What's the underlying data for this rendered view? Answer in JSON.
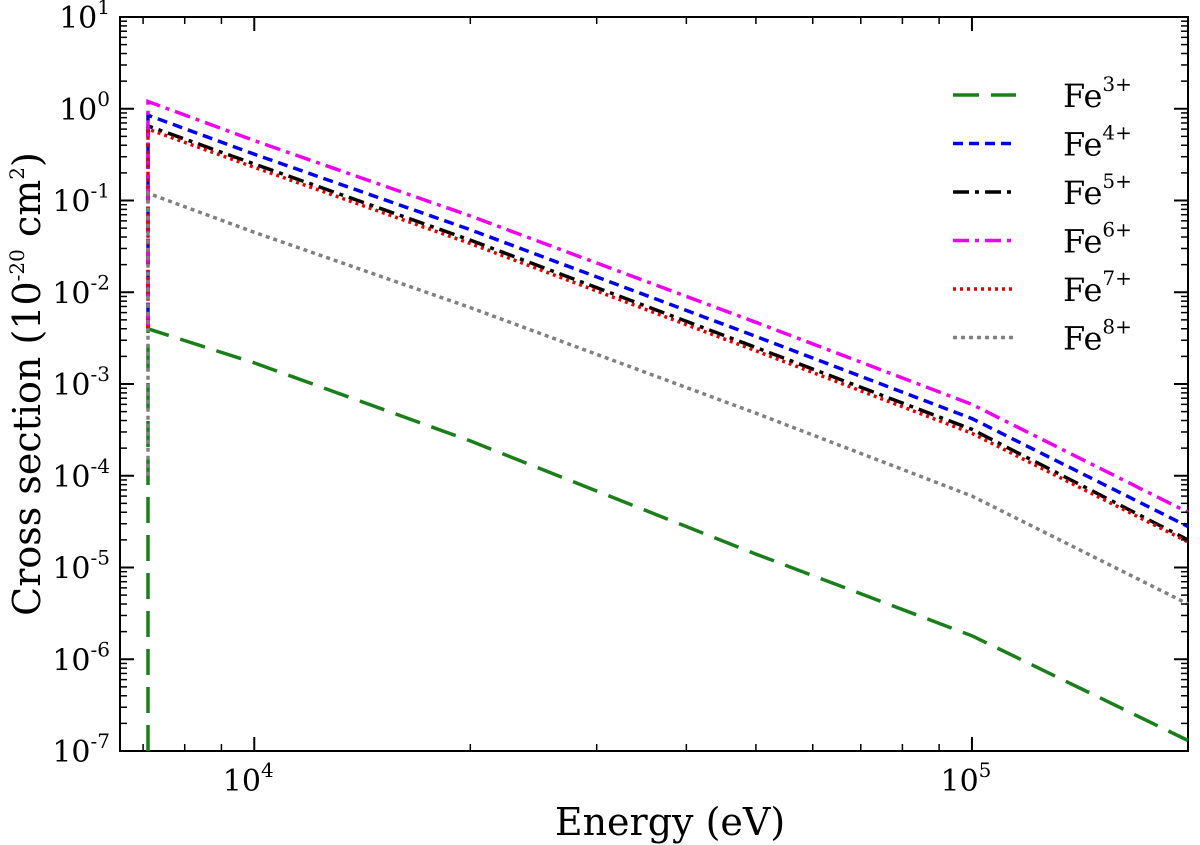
{
  "chart_data": {
    "type": "line",
    "title": "",
    "xlabel": "Energy (eV)",
    "ylabel_main": "Cross section (10",
    "ylabel_exp": "-20",
    "ylabel_mid": " cm",
    "ylabel_exp2": "2",
    "ylabel_end": ")",
    "xscale": "log",
    "yscale": "log",
    "xlim": [
      6500,
      200000
    ],
    "ylim": [
      1e-07,
      10
    ],
    "grid": false,
    "legend_position": "top-right",
    "x_ticks": [
      {
        "value": 10000,
        "base": "10",
        "exp": "4"
      },
      {
        "value": 100000,
        "base": "10",
        "exp": "5"
      }
    ],
    "y_ticks": [
      {
        "value": 10,
        "base": "10",
        "exp": "1"
      },
      {
        "value": 1,
        "base": "10",
        "exp": "0"
      },
      {
        "value": 0.1,
        "base": "10",
        "exp": "-1"
      },
      {
        "value": 0.01,
        "base": "10",
        "exp": "-2"
      },
      {
        "value": 0.001,
        "base": "10",
        "exp": "-3"
      },
      {
        "value": 0.0001,
        "base": "10",
        "exp": "-4"
      },
      {
        "value": 1e-05,
        "base": "10",
        "exp": "-5"
      },
      {
        "value": 1e-06,
        "base": "10",
        "exp": "-6"
      },
      {
        "value": 1e-07,
        "base": "10",
        "exp": "-7"
      }
    ],
    "threshold": 7112,
    "series": [
      {
        "name": "Fe",
        "sup": "3+",
        "color": "#1a7f1a",
        "dash": "26,12",
        "x": [
          7112,
          7112,
          10000,
          20000,
          50000,
          100000,
          200000
        ],
        "y": [
          1e-07,
          0.004,
          0.0017,
          0.00024,
          1.4e-05,
          1.8e-06,
          1.3e-07
        ]
      },
      {
        "name": "Fe",
        "sup": "4+",
        "color": "#0000ee",
        "dash": "10,6",
        "x": [
          7112,
          7112,
          10000,
          20000,
          50000,
          100000,
          200000
        ],
        "y": [
          0.004,
          0.85,
          0.32,
          0.048,
          0.0033,
          0.00042,
          2.8e-05
        ]
      },
      {
        "name": "Fe",
        "sup": "5+",
        "color": "#000000",
        "dash": "16,6,4,6",
        "x": [
          7112,
          7112,
          10000,
          20000,
          50000,
          100000,
          200000
        ],
        "y": [
          0.004,
          0.65,
          0.25,
          0.037,
          0.0025,
          0.00032,
          2e-05
        ]
      },
      {
        "name": "Fe",
        "sup": "6+",
        "color": "#ee00ee",
        "dash": "16,6,4,6",
        "x": [
          7112,
          7112,
          10000,
          20000,
          50000,
          100000,
          200000
        ],
        "y": [
          0.004,
          1.2,
          0.45,
          0.068,
          0.0047,
          0.0006,
          4e-05
        ]
      },
      {
        "name": "Fe",
        "sup": "7+",
        "color": "#e00000",
        "dash": "3,4",
        "x": [
          7112,
          7112,
          10000,
          20000,
          50000,
          100000,
          200000
        ],
        "y": [
          0.004,
          0.6,
          0.23,
          0.034,
          0.0023,
          0.00029,
          1.9e-05
        ]
      },
      {
        "name": "Fe",
        "sup": "8+",
        "color": "#808080",
        "dash": "4,4",
        "x": [
          7112,
          7112,
          10000,
          20000,
          50000,
          100000,
          200000
        ],
        "y": [
          0.0001,
          0.12,
          0.045,
          0.0068,
          0.00048,
          6e-05,
          4e-06
        ]
      }
    ]
  }
}
